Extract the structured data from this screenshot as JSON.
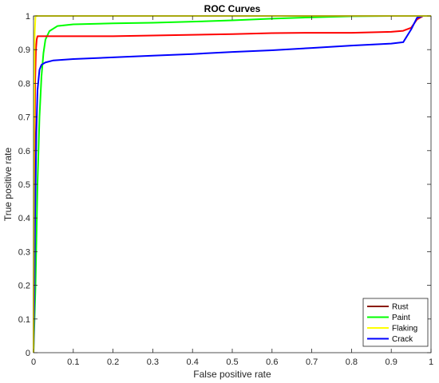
{
  "chart_data": {
    "type": "line",
    "title": "ROC Curves",
    "xlabel": "False positive rate",
    "ylabel": "True positive rate",
    "xlim": [
      0,
      1
    ],
    "ylim": [
      0,
      1
    ],
    "xticks": [
      "0",
      "0.1",
      "0.2",
      "0.3",
      "0.4",
      "0.5",
      "0.6",
      "0.7",
      "0.8",
      "0.9",
      "1"
    ],
    "yticks": [
      "0",
      "0.1",
      "0.2",
      "0.3",
      "0.4",
      "0.5",
      "0.6",
      "0.7",
      "0.8",
      "0.9",
      "1"
    ],
    "grid": false,
    "legend_position": "bottom-right",
    "series": [
      {
        "name": "Rust",
        "legend_color": "#8b1a00",
        "color": "#ff0000",
        "x": [
          0,
          0.002,
          0.004,
          0.006,
          0.008,
          0.01,
          0.1,
          0.2,
          0.3,
          0.4,
          0.5,
          0.6,
          0.7,
          0.8,
          0.9,
          0.93,
          0.95,
          0.965,
          0.98,
          1.0
        ],
        "y": [
          0,
          0.5,
          0.8,
          0.9,
          0.93,
          0.94,
          0.94,
          0.94,
          0.942,
          0.944,
          0.946,
          0.949,
          0.95,
          0.95,
          0.953,
          0.956,
          0.965,
          0.99,
          1.0,
          1.0
        ]
      },
      {
        "name": "Paint",
        "color": "#00ff00",
        "x": [
          0,
          0.005,
          0.01,
          0.015,
          0.02,
          0.025,
          0.03,
          0.04,
          0.06,
          0.1,
          0.2,
          0.3,
          0.4,
          0.5,
          0.6,
          0.7,
          0.8,
          0.9,
          1.0
        ],
        "y": [
          0,
          0.2,
          0.5,
          0.7,
          0.82,
          0.89,
          0.93,
          0.955,
          0.97,
          0.975,
          0.978,
          0.98,
          0.983,
          0.987,
          0.992,
          0.996,
          0.999,
          1.0,
          1.0
        ]
      },
      {
        "name": "Flaking",
        "color": "#ffff00",
        "x": [
          0,
          0.001,
          0.003,
          0.005,
          1.0
        ],
        "y": [
          0,
          0.6,
          0.95,
          1.0,
          1.0
        ]
      },
      {
        "name": "Crack",
        "color": "#0000ff",
        "x": [
          0,
          0.002,
          0.004,
          0.007,
          0.01,
          0.015,
          0.02,
          0.03,
          0.05,
          0.1,
          0.2,
          0.3,
          0.4,
          0.5,
          0.6,
          0.7,
          0.8,
          0.9,
          0.93,
          0.95,
          0.965,
          0.98,
          1.0
        ],
        "y": [
          0,
          0.15,
          0.4,
          0.65,
          0.78,
          0.84,
          0.855,
          0.862,
          0.868,
          0.872,
          0.877,
          0.882,
          0.887,
          0.893,
          0.898,
          0.905,
          0.912,
          0.918,
          0.922,
          0.96,
          0.995,
          1.0,
          1.0
        ]
      }
    ]
  }
}
